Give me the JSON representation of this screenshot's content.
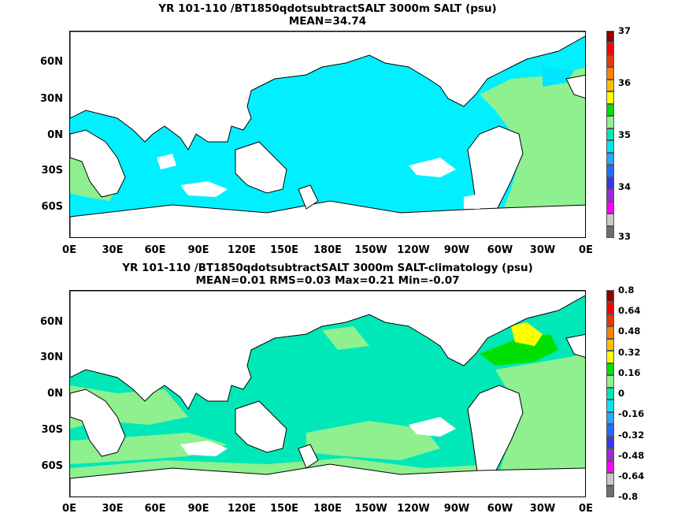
{
  "panels": [
    {
      "title_line1": "YR 101-110 /BT1850qdotsubtractSALT 3000m SALT (psu)",
      "title_line2": "MEAN=34.74",
      "lat_labels": [
        "60N",
        "30N",
        "0N",
        "30S",
        "60S"
      ],
      "lon_labels": [
        "0E",
        "30E",
        "60E",
        "90E",
        "120E",
        "150E",
        "180E",
        "150W",
        "120W",
        "90W",
        "60W",
        "30W",
        "0E"
      ],
      "colorbar_labels": [
        "37",
        "36",
        "35",
        "34",
        "33"
      ]
    },
    {
      "title_line1": "YR 101-110 /BT1850qdotsubtractSALT 3000m SALT-climatology (psu)",
      "title_line2": "MEAN=0.01   RMS=0.03   Max=0.21   Min=-0.07",
      "lat_labels": [
        "60N",
        "30N",
        "0N",
        "30S",
        "60S"
      ],
      "lon_labels": [
        "0E",
        "30E",
        "60E",
        "90E",
        "120E",
        "150E",
        "180E",
        "150W",
        "120W",
        "90W",
        "60W",
        "30W",
        "0E"
      ],
      "colorbar_labels": [
        "0.8",
        "0.64",
        "0.48",
        "0.32",
        "0.16",
        "0",
        "-0.16",
        "-0.32",
        "-0.48",
        "-0.64",
        "-0.8"
      ]
    }
  ],
  "colormap": [
    "#6e6e6e",
    "#c8c8c8",
    "#ff00ff",
    "#9c2bd6",
    "#3838e6",
    "#1f6cff",
    "#2aa8ff",
    "#00e5ff",
    "#00e8b8",
    "#8ef08e",
    "#00e000",
    "#ffff00",
    "#ffc000",
    "#ff8000",
    "#e83800",
    "#ff0000",
    "#8b0000"
  ]
}
